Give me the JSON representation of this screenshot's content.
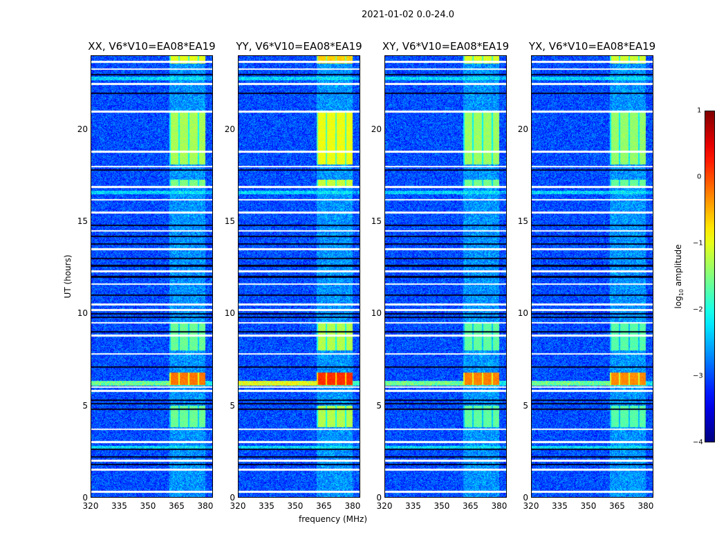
{
  "suptitle": "2021-01-02 0.0-24.0",
  "chart_data": {
    "type": "heatmap",
    "panels": [
      {
        "title": "XX, V6*V10=EA08*EA19",
        "band_boost": 0.0
      },
      {
        "title": "YY, V6*V10=EA08*EA19",
        "band_boost": 0.35
      },
      {
        "title": "XY, V6*V10=EA08*EA19",
        "band_boost": -0.05
      },
      {
        "title": "YX, V6*V10=EA08*EA19",
        "band_boost": -0.1
      }
    ],
    "xlabel": "frequency (MHz)",
    "ylabel": "UT (hours)",
    "xlim": [
      320,
      384
    ],
    "ylim": [
      0,
      24
    ],
    "xticks": [
      "320",
      "335",
      "350",
      "365",
      "380"
    ],
    "yticks": [
      "0",
      "5",
      "10",
      "15",
      "20"
    ],
    "colorbar": {
      "label": "log10 amplitude",
      "ticks": [
        "1",
        "0",
        "−1",
        "−2",
        "−3",
        "−4"
      ],
      "range": [
        -4,
        1
      ],
      "colormap": "jet"
    },
    "background_level": -3.0,
    "rfi_band_mhz": [
      361,
      380
    ],
    "rfi_segments_hours": [
      [
        18.1,
        21.0,
        -1.3
      ],
      [
        6.1,
        6.8,
        -0.2
      ],
      [
        3.8,
        5.0,
        -1.6
      ],
      [
        8.0,
        9.5,
        -1.6
      ],
      [
        16.9,
        17.3,
        -1.5
      ],
      [
        23.6,
        24.0,
        -1.0
      ]
    ],
    "flagged_white_hours": [
      0.3,
      1.5,
      2.0,
      3.0,
      3.7,
      5.8,
      6.0,
      7.8,
      8.8,
      9.5,
      10.2,
      10.5,
      11.6,
      12.3,
      13.5,
      14.5,
      15.5,
      16.2,
      16.9,
      18.0,
      18.8,
      21.0,
      22.5,
      23.3,
      23.7
    ],
    "flagged_black_hours": [
      1.8,
      2.2,
      2.6,
      4.8,
      5.1,
      5.3,
      7.1,
      9.0,
      9.8,
      10.0,
      11.0,
      12.0,
      12.6,
      13.0,
      13.8,
      14.2,
      14.8,
      17.8,
      22.0,
      23.0
    ]
  }
}
